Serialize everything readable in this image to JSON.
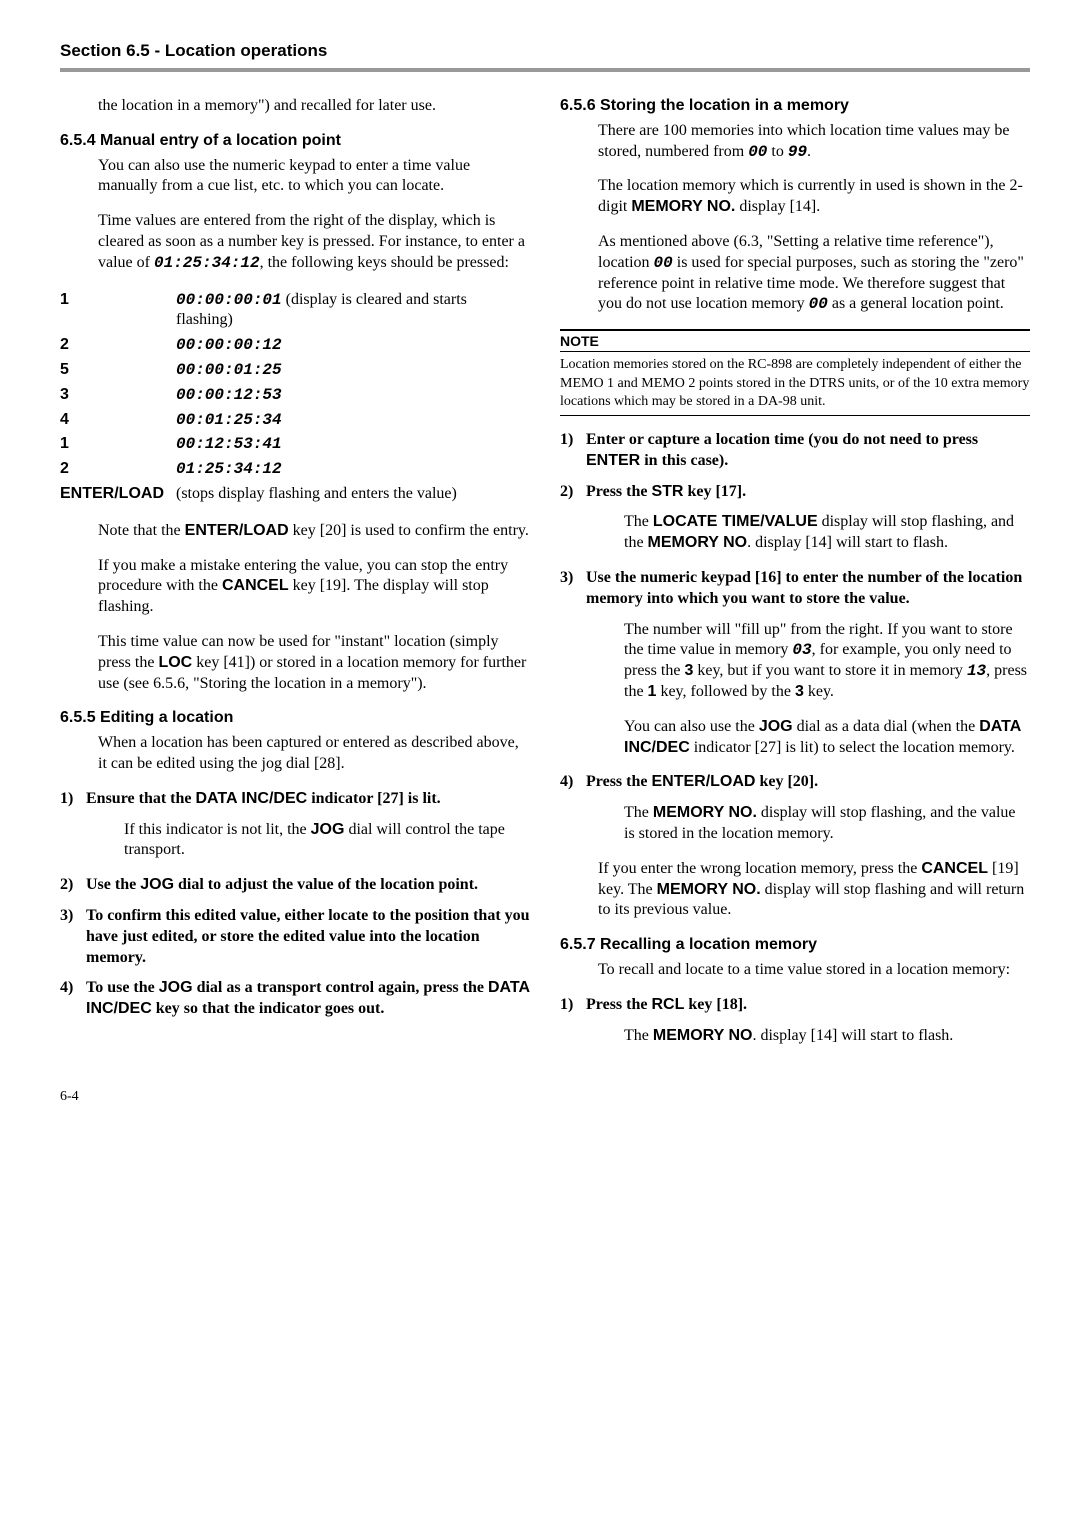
{
  "header": "Section 6.5 - Location operations",
  "footer": "6-4",
  "left": {
    "intro": "the location in a memory\") and recalled for later use.",
    "s654": {
      "title": "6.5.4  Manual entry of a location point",
      "p1": "You can also use the numeric keypad to enter a time value manually from a cue list, etc. to which you can locate.",
      "p2a": "Time values are entered from the right of the display, which is cleared as soon as a number key is pressed. For instance, to enter a value of ",
      "p2code": "01:25:34:12",
      "p2b": ", the following keys should be pressed:",
      "table": [
        [
          "1",
          "00:00:00:01",
          " (display is cleared and starts flashing)"
        ],
        [
          "2",
          "00:00:00:12",
          ""
        ],
        [
          "5",
          "00:00:01:25",
          ""
        ],
        [
          "3",
          "00:00:12:53",
          ""
        ],
        [
          "4",
          "00:01:25:34",
          ""
        ],
        [
          "1",
          "00:12:53:41",
          ""
        ],
        [
          "2",
          "01:25:34:12",
          ""
        ],
        [
          "ENTER/LOAD",
          "",
          "(stops display flashing and enters the value)"
        ]
      ],
      "p3a": "Note that the ",
      "p3b": "ENTER/LOAD",
      "p3c": " key [20] is used to confirm the entry.",
      "p4a": "If you make a mistake entering the value, you can stop the entry procedure with the ",
      "p4b": "CANCEL",
      "p4c": " key [19]. The display will stop flashing.",
      "p5a": "This time value can now be used for \"instant\" location (simply press the ",
      "p5b": "LOC",
      "p5c": " key [41]) or stored in a location memory for further use (see 6.5.6, \"Storing the location in a memory\")."
    },
    "s655": {
      "title": "6.5.5  Editing a location",
      "p1": "When a location has been captured or entered as described above, it can be edited using the jog dial [28].",
      "step1a": "Ensure that the ",
      "step1b": "DATA INC/DEC",
      "step1c": " indicator [27] is lit.",
      "step1note_a": "If this indicator is not lit, the ",
      "step1note_b": "JOG",
      "step1note_c": " dial will control the tape transport.",
      "step2a": "Use the ",
      "step2b": "JOG",
      "step2c": " dial to adjust the value of the location point.",
      "step3": "To confirm this edited value, either locate to the position that you have just edited, or store the edited value into the location memory.",
      "step4a": "To use the ",
      "step4b": "JOG",
      "step4c": " dial as a transport control again, press the ",
      "step4d": "DATA INC/DEC",
      "step4e": " key so that the indicator goes out."
    }
  },
  "right": {
    "s656": {
      "title": "6.5.6  Storing the location in a memory",
      "p1a": "There are 100 memories into which location time values may be stored, numbered from ",
      "p1b": "00",
      "p1c": " to ",
      "p1d": "99",
      "p1e": ".",
      "p2a": "The location memory which is currently in used is shown in the 2-digit ",
      "p2b": "MEMORY NO.",
      "p2c": " display [14].",
      "p3a": "As mentioned above (6.3, \"Setting a relative time reference\"), location ",
      "p3b": "00",
      "p3c": " is used for special purposes, such as storing the \"zero\" reference point in relative time mode. We therefore suggest that you do not use location memory ",
      "p3d": "00",
      "p3e": " as a general location point.",
      "note_head": "NOTE",
      "note_body": "Location memories stored on the RC-898 are completely independent of either the MEMO 1 and MEMO 2 points stored in the DTRS units, or of the 10 extra memory locations which may be stored in a DA-98 unit.",
      "step1a": "Enter or capture a location time (you do not need to press ",
      "step1b": "ENTER",
      "step1c": " in this case).",
      "step2a": "Press the ",
      "step2b": "STR",
      "step2c": " key [17].",
      "step2note_a": "The ",
      "step2note_b": "LOCATE TIME/VALUE",
      "step2note_c": " display will stop flashing, and the ",
      "step2note_d": "MEMORY NO",
      "step2note_e": ". display [14] will start to flash.",
      "step3": "Use the numeric keypad [16] to enter the number of the location memory into which you want to store the value.",
      "step3note1_a": "The number will \"fill up\" from the right. If you want to store the time value in memory ",
      "step3note1_b": "03",
      "step3note1_c": ", for example, you only need to press the ",
      "step3note1_d": "3",
      "step3note1_e": " key, but if you want to store it in memory ",
      "step3note1_f": "13",
      "step3note1_g": ", press the ",
      "step3note1_h": "1",
      "step3note1_i": " key, followed by the ",
      "step3note1_j": "3",
      "step3note1_k": " key.",
      "step3note2_a": "You can also use the ",
      "step3note2_b": "JOG",
      "step3note2_c": " dial as a data dial (when the ",
      "step3note2_d": "DATA INC/DEC",
      "step3note2_e": " indicator [27] is lit) to select the location memory.",
      "step4a": "Press the ",
      "step4b": "ENTER/LOAD",
      "step4c": " key [20].",
      "step4note_a": "The ",
      "step4note_b": "MEMORY NO.",
      "step4note_c": " display will stop flashing, and the value is stored in the location memory.",
      "p4a": "If you enter the wrong location memory, press the ",
      "p4b": "CANCEL",
      "p4c": " [19] key. The ",
      "p4d": "MEMORY NO.",
      "p4e": " display will stop flashing and will return to its previous value."
    },
    "s657": {
      "title": "6.5.7  Recalling a location memory",
      "p1": "To recall and locate to a time value stored in a location memory:",
      "step1a": "Press the ",
      "step1b": "RCL",
      "step1c": " key [18].",
      "step1note_a": "The ",
      "step1note_b": "MEMORY NO",
      "step1note_c": ". display [14] will start to flash."
    }
  }
}
